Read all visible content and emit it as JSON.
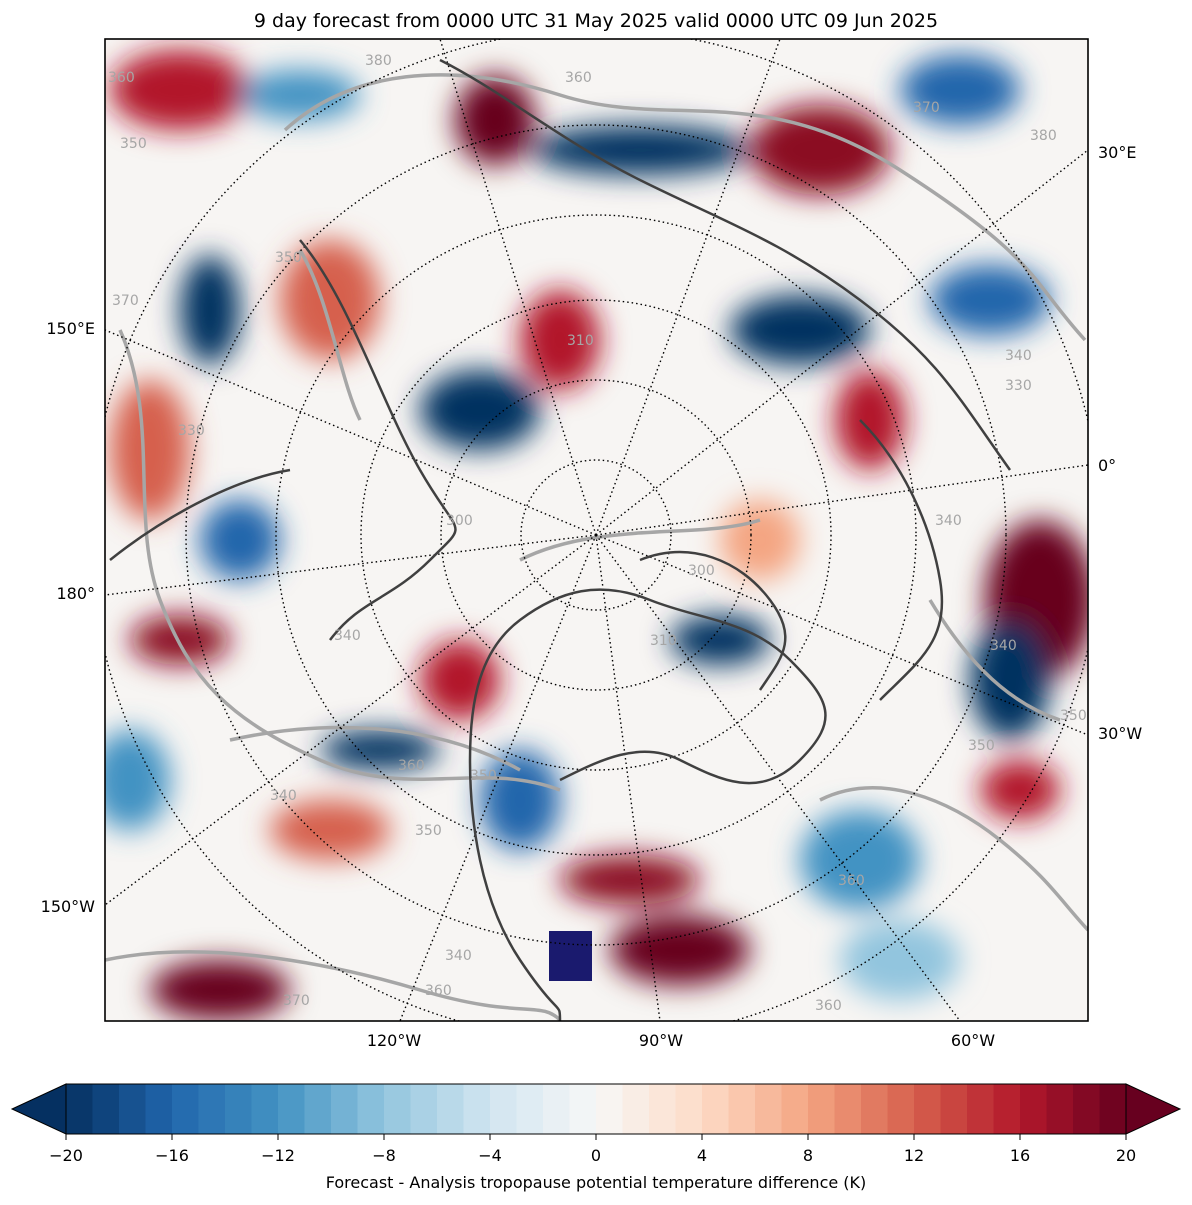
{
  "title": "9 day forecast from 0000 UTC 31 May 2025 valid 0000 UTC 09 Jun 2025",
  "map": {
    "projection": "north-polar-stereographic",
    "left_tick_labels": [
      "150°E",
      "180°",
      "150°W"
    ],
    "right_tick_labels": [
      "30°E",
      "0°",
      "30°W"
    ],
    "bottom_tick_labels": [
      "120°W",
      "90°W",
      "60°W"
    ],
    "contour_labels": [
      "360",
      "360",
      "380",
      "370",
      "380",
      "350",
      "370",
      "340",
      "330",
      "350",
      "340",
      "310",
      "300",
      "340",
      "360",
      "350",
      "340",
      "350",
      "360",
      "370",
      "350",
      "360",
      "340",
      "330",
      "310",
      "300",
      "340",
      "360",
      "350"
    ],
    "coastline_color": "#404040",
    "contour_color": "#a6a6a6",
    "graticule_style": "dotted"
  },
  "colorbar": {
    "label": "Forecast - Analysis tropopause potential temperature difference (K)",
    "tick_labels": [
      "−20",
      "−16",
      "−12",
      "−8",
      "−4",
      "0",
      "4",
      "8",
      "12",
      "16",
      "20"
    ],
    "min": -20,
    "max": 20,
    "step": 1,
    "extend": "both",
    "colormap": "RdBu_r",
    "under_color": "#053061",
    "over_color": "#67001f"
  }
}
